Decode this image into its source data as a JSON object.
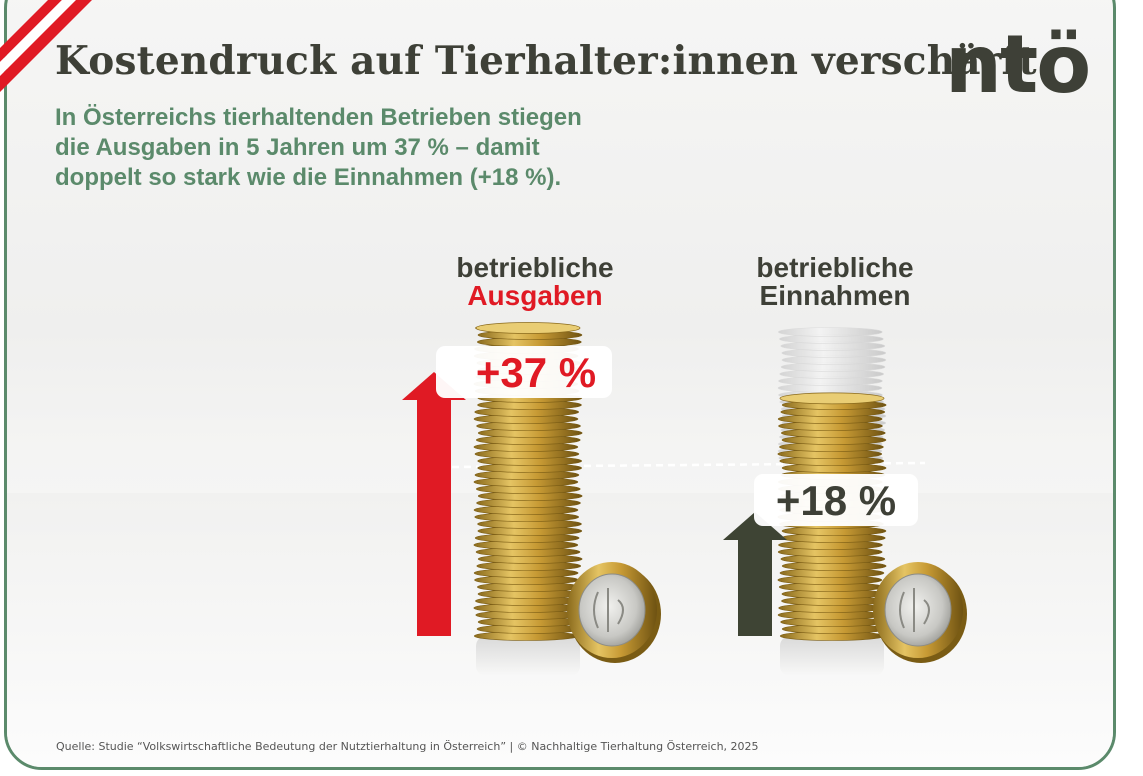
{
  "header": {
    "title": "Kostendruck auf Tierhalter:innen verschärft",
    "subtitle_line1": "In Österreichs tierhaltenden Betrieben stiegen",
    "subtitle_line2": "die Ausgaben in 5 Jahren um 37 % – damit",
    "subtitle_line3": "doppelt so stark wie die Einnahmen (+18 %).",
    "logo": "ntö"
  },
  "footer": {
    "source": "Quelle:  Studie “Volkswirtschaftliche Bedeutung der Nutztierhaltung in Österreich”  |  © Nachhaltige Tierhaltung Österreich, 2025"
  },
  "colors": {
    "accent_green": "#5b8a6b",
    "expense_red": "#e01a24",
    "income_dark": "#3e4434",
    "text_dark": "#3e4037",
    "coin_gold": "#c9a23a"
  },
  "chart_data": {
    "type": "bar",
    "unit": "%",
    "series": [
      {
        "name_line1": "betriebliche",
        "name_line2": "Ausgaben",
        "value": 37,
        "label": "+37 %",
        "color": "#e01a24"
      },
      {
        "name_line1": "betriebliche",
        "name_line2": "Einnahmen",
        "value": 18,
        "label": "+18 %",
        "color": "#3e4434"
      }
    ],
    "baseline_dashed": true
  }
}
